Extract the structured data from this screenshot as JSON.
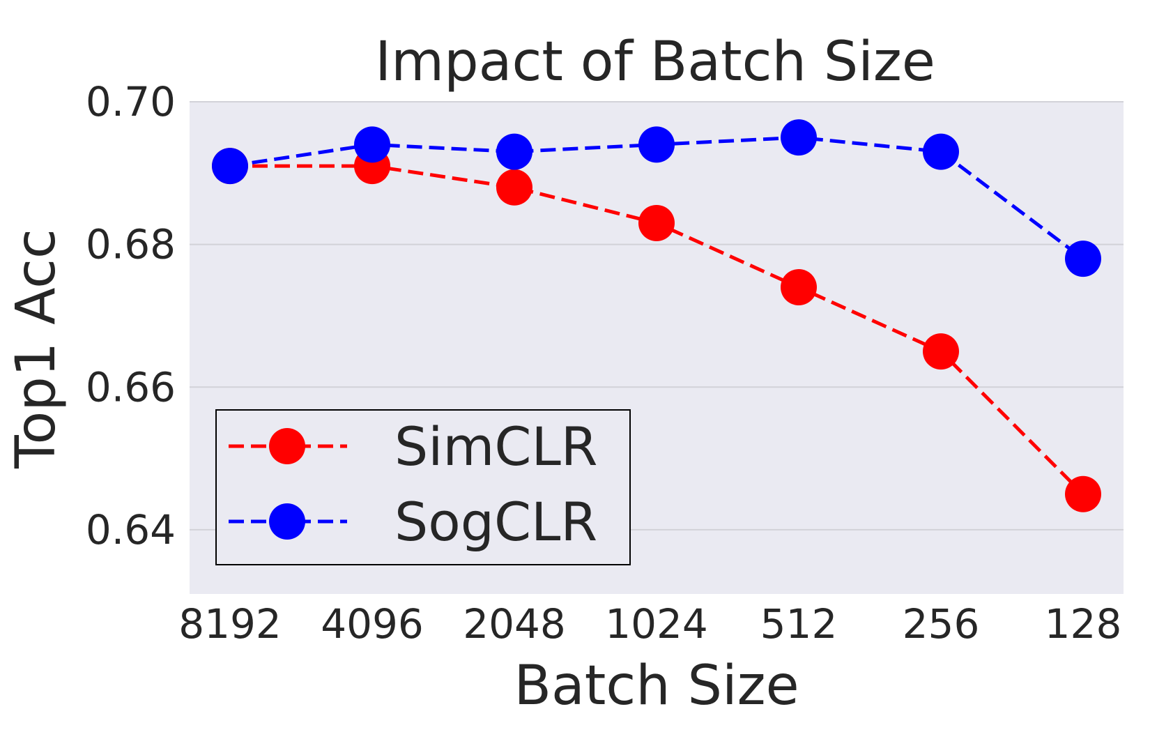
{
  "chart_data": {
    "type": "line",
    "title": "Impact of Batch Size",
    "xlabel": "Batch Size",
    "ylabel": "Top1 Acc",
    "categories": [
      "8192",
      "4096",
      "2048",
      "1024",
      "512",
      "256",
      "128"
    ],
    "ylim": [
      0.631,
      0.7
    ],
    "yticks": [
      "0.64",
      "0.66",
      "0.68",
      "0.70"
    ],
    "ytick_values": [
      0.64,
      0.66,
      0.68,
      0.7
    ],
    "grid": true,
    "legend_position": "lower-left",
    "series": [
      {
        "name": "SimCLR",
        "color": "#ff0000",
        "values": [
          0.691,
          0.691,
          0.688,
          0.683,
          0.674,
          0.665,
          0.645
        ]
      },
      {
        "name": "SogCLR",
        "color": "#0000ff",
        "values": [
          0.691,
          0.694,
          0.693,
          0.694,
          0.695,
          0.693,
          0.678
        ]
      }
    ],
    "background": "#eaeaf2"
  }
}
